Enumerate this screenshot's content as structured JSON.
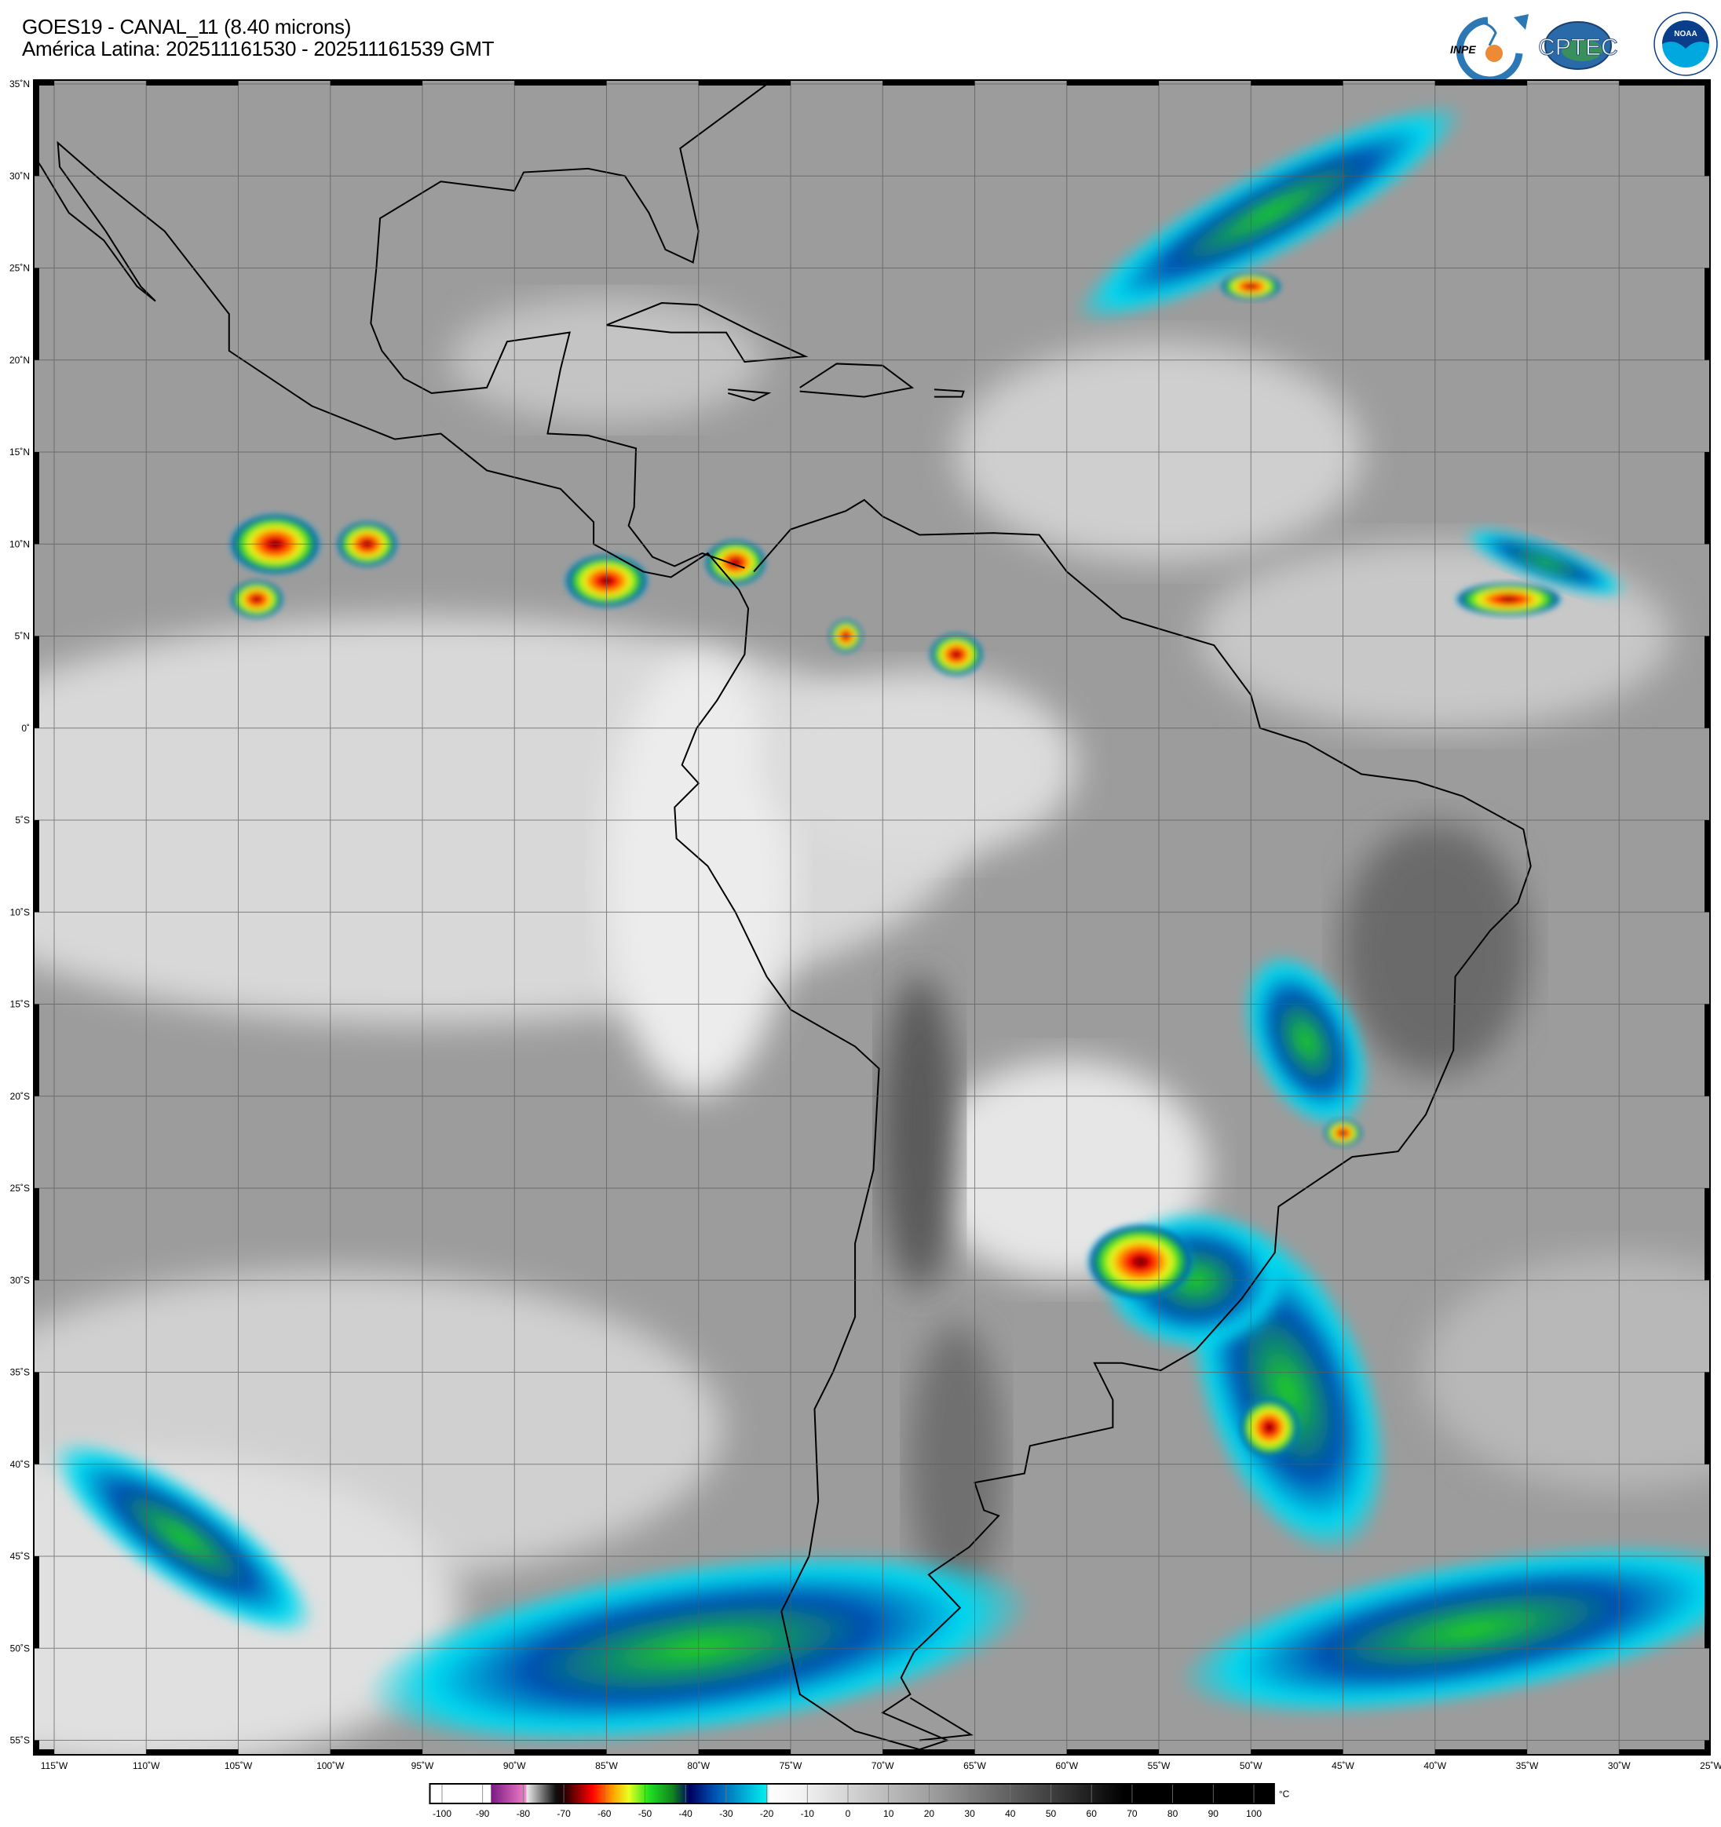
{
  "header": {
    "title": "GOES19 - CANAL_11 (8.40 microns)",
    "subtitle": "América Latina: 202511161530 - 202511161539 GMT"
  },
  "logos": [
    {
      "name": "INPE",
      "text": "INPE"
    },
    {
      "name": "CPTEC",
      "text": "CPTEC"
    },
    {
      "name": "NOAA",
      "text": "NOAA"
    }
  ],
  "map": {
    "projection": "equirectangular",
    "lon_range": [
      -116,
      -25
    ],
    "lat_range": [
      -56,
      35
    ],
    "grid_interval_deg": 5,
    "lat_labels": [
      "35˚N",
      "30˚N",
      "25˚N",
      "20˚N",
      "15˚N",
      "10˚N",
      "5˚N",
      "0˚",
      "5˚S",
      "10˚S",
      "15˚S",
      "20˚S",
      "25˚S",
      "30˚S",
      "35˚S",
      "40˚S",
      "45˚S",
      "50˚S",
      "55˚S"
    ],
    "lat_values": [
      35,
      30,
      25,
      20,
      15,
      10,
      5,
      0,
      -5,
      -10,
      -15,
      -20,
      -25,
      -30,
      -35,
      -40,
      -45,
      -50,
      -55
    ],
    "lon_labels": [
      "115˚W",
      "110˚W",
      "105˚W",
      "100˚W",
      "95˚W",
      "90˚W",
      "85˚W",
      "80˚W",
      "75˚W",
      "70˚W",
      "65˚W",
      "60˚W",
      "55˚W",
      "50˚W",
      "45˚W",
      "40˚W",
      "35˚W",
      "30˚W",
      "25˚W"
    ],
    "lon_values": [
      -115,
      -110,
      -105,
      -100,
      -95,
      -90,
      -85,
      -80,
      -75,
      -70,
      -65,
      -60,
      -55,
      -50,
      -45,
      -40,
      -35,
      -30,
      -25
    ]
  },
  "colorbar": {
    "unit": "°C",
    "range": [
      -103,
      105
    ],
    "ticks": [
      "-100",
      "-90",
      "-80",
      "-70",
      "-60",
      "-50",
      "-40",
      "-30",
      "-20",
      "-10",
      "0",
      "10",
      "20",
      "30",
      "40",
      "50",
      "60",
      "70",
      "80",
      "90",
      "100"
    ],
    "tick_values": [
      -100,
      -90,
      -80,
      -70,
      -60,
      -50,
      -40,
      -30,
      -20,
      -10,
      0,
      10,
      20,
      30,
      40,
      50,
      60,
      70,
      80,
      90,
      100
    ],
    "stops": [
      {
        "v": -103,
        "c": "#ffffff"
      },
      {
        "v": -88,
        "c": "#ffffff"
      },
      {
        "v": -87.9,
        "c": "#7a1a82"
      },
      {
        "v": -79.5,
        "c": "#f07cc8"
      },
      {
        "v": -79,
        "c": "#e8e8e8"
      },
      {
        "v": -72,
        "c": "#101010"
      },
      {
        "v": -70,
        "c": "#200000"
      },
      {
        "v": -63,
        "c": "#ff0000"
      },
      {
        "v": -58,
        "c": "#ffa000"
      },
      {
        "v": -54,
        "c": "#e8ff20"
      },
      {
        "v": -49,
        "c": "#20e020"
      },
      {
        "v": -43,
        "c": "#108020"
      },
      {
        "v": -39,
        "c": "#000060"
      },
      {
        "v": -33,
        "c": "#0050b0"
      },
      {
        "v": -20,
        "c": "#00f0f0"
      },
      {
        "v": -19.5,
        "c": "#ffffff"
      },
      {
        "v": -12,
        "c": "#f4f4f4"
      },
      {
        "v": 20,
        "c": "#a0a0a0"
      },
      {
        "v": 50,
        "c": "#404040"
      },
      {
        "v": 68,
        "c": "#000000"
      },
      {
        "v": 105,
        "c": "#000000"
      }
    ]
  }
}
